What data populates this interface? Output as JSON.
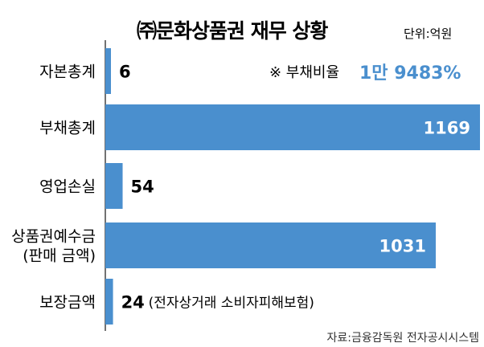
{
  "colors": {
    "bar": "#4a8fce",
    "axis": "#444444",
    "text": "#1a1a1a"
  },
  "header": {
    "title": "㈜문화상품권 재무 상황",
    "unit": "단위:억원",
    "note_label": "※ 부채비율",
    "note_value": "1만 9483%"
  },
  "source": "자료:금융감독원 전자공시시스템",
  "chart_data": {
    "type": "bar",
    "orientation": "horizontal",
    "title": "㈜문화상품권 재무 상황",
    "unit": "억원",
    "xlim": [
      0,
      1169
    ],
    "grid": false,
    "categories": [
      {
        "lines": [
          "자본총계"
        ],
        "value": 6,
        "label": "6",
        "annotation": ""
      },
      {
        "lines": [
          "부채총계"
        ],
        "value": 1169,
        "label": "1169",
        "annotation": ""
      },
      {
        "lines": [
          "영업손실"
        ],
        "value": 54,
        "label": "54",
        "annotation": ""
      },
      {
        "lines": [
          "상품권예수금",
          "(판매 금액)"
        ],
        "value": 1031,
        "label": "1031",
        "annotation": ""
      },
      {
        "lines": [
          "보장금액"
        ],
        "value": 24,
        "label": "24",
        "annotation": "(전자상거래 소비자피해보험)"
      }
    ]
  }
}
